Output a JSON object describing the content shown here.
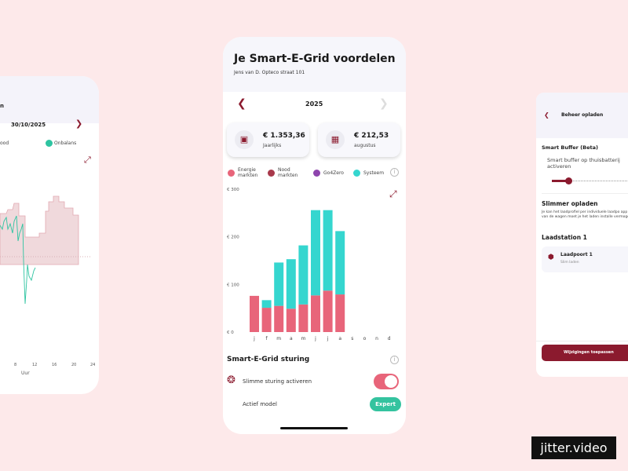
{
  "left_screen": {
    "title_fragment": "n",
    "date": "30/10/2025",
    "legend": [
      {
        "label": "ood",
        "color": "#e2a9b1"
      },
      {
        "label": "Onbalans",
        "color": "#2ec4a1"
      }
    ],
    "x_ticks": [
      "8",
      "12",
      "16",
      "20",
      "24"
    ],
    "x_label": "Uur"
  },
  "main_screen": {
    "title": "Je Smart-E-Grid voordelen",
    "subtitle": "Jens van D. Opteco straat 101",
    "year": "2025",
    "stats": [
      {
        "value": "€ 1.353,36",
        "label": "Jaarlijks",
        "icon": "calendar-icon"
      },
      {
        "value": "€ 212,53",
        "label": "augustus",
        "icon": "calendar-grid-icon"
      }
    ],
    "legend": [
      {
        "label": "Energie markten",
        "color": "#e8657a"
      },
      {
        "label": "Nood markten",
        "color": "#a8394b"
      },
      {
        "label": "Go4Zero",
        "color": "#8e44ad"
      },
      {
        "label": "Systeem",
        "color": "#35d6cf"
      }
    ],
    "steering": {
      "title": "Smart-E-Grid sturing",
      "toggle_label": "Slimme sturing activeren",
      "toggle_on": true,
      "model_label": "Actief model",
      "model_value": "Expert"
    }
  },
  "chart_data": {
    "type": "bar",
    "stacked": true,
    "categories": [
      "j",
      "f",
      "m",
      "a",
      "m",
      "j",
      "j",
      "a",
      "s",
      "o",
      "n",
      "d"
    ],
    "y_ticks": [
      "€ 0",
      "€ 100",
      "€ 200",
      "€ 300"
    ],
    "ylim": [
      0,
      300
    ],
    "series": [
      {
        "name": "Energie markten",
        "color": "#e8657a",
        "values": [
          76,
          51,
          55,
          49,
          58,
          77,
          87,
          79,
          0,
          0,
          0,
          0
        ]
      },
      {
        "name": "Nood markten",
        "color": "#a8394b",
        "values": [
          0,
          0,
          0,
          0,
          0,
          0,
          0,
          0,
          0,
          0,
          0,
          0
        ]
      },
      {
        "name": "Go4Zero",
        "color": "#8e44ad",
        "values": [
          0,
          0,
          0,
          0,
          0,
          0,
          0,
          0,
          0,
          0,
          0,
          0
        ]
      },
      {
        "name": "Systeem",
        "color": "#35d6cf",
        "values": [
          0,
          16,
          91,
          104,
          124,
          179,
          169,
          133,
          0,
          0,
          0,
          0
        ]
      }
    ]
  },
  "right_screen": {
    "title": "Beheer opladen",
    "buffer_title": "Smart Buffer (Beta)",
    "buffer_text": "Smart buffer op thuisbatterij activeren",
    "slider_value": 0.12,
    "smart_title": "Slimmer opladen",
    "smart_text": "Je kan het laadprofiel per individuele laadpo app van de wagen moet je het laden installe vermogen.",
    "station_title": "Laadstation 1",
    "port_title": "Laadpoort 1",
    "port_sub": "Slim laden",
    "apply_button": "Wijzigingen toepassen"
  },
  "badge": "jitter.video"
}
